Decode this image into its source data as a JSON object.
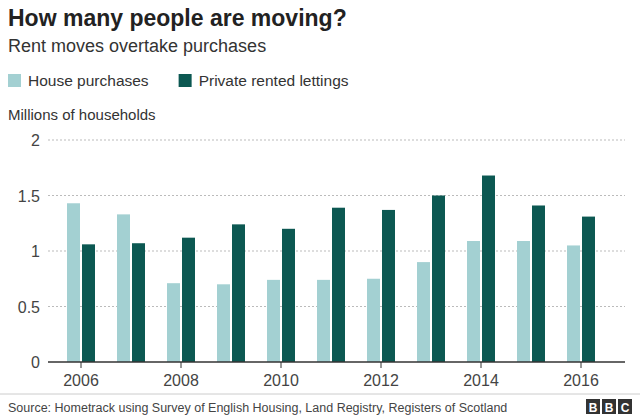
{
  "chart_data": {
    "type": "bar",
    "title": "How many people are moving?",
    "subtitle": "Rent moves overtake purchases",
    "y_label": "Millions of households",
    "categories": [
      "2006",
      null,
      "2008",
      null,
      "2010",
      null,
      "2012",
      null,
      "2014",
      null,
      "2016"
    ],
    "series": [
      {
        "name": "House purchases",
        "color": "#a3d0d2",
        "values": [
          1.43,
          1.33,
          0.71,
          0.7,
          0.74,
          0.74,
          0.75,
          0.9,
          1.09,
          1.09,
          1.05
        ]
      },
      {
        "name": "Private rented lettings",
        "color": "#0c5852",
        "values": [
          1.06,
          1.07,
          1.12,
          1.24,
          1.2,
          1.39,
          1.37,
          1.5,
          1.68,
          1.41,
          1.31
        ]
      }
    ],
    "ylim": [
      0,
      2
    ],
    "yticks": [
      0,
      0.5,
      1,
      1.5,
      2
    ],
    "grid": true,
    "legend": "top-left",
    "source": "Source: Hometrack using Survey of English Housing, Land Registry, Registers of Scotland",
    "logo": "BBC"
  }
}
